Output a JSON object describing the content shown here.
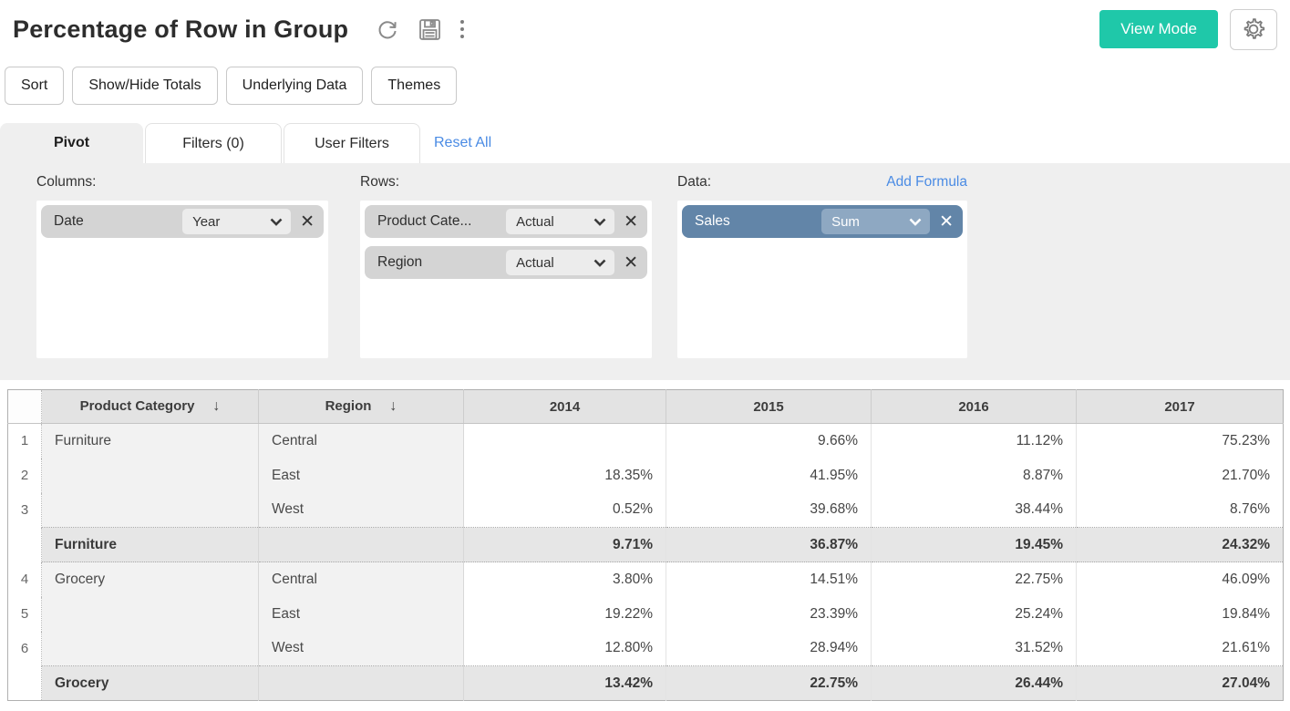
{
  "header": {
    "title": "Percentage of Row in Group",
    "view_mode_label": "View Mode"
  },
  "toolbar": {
    "buttons": [
      "Sort",
      "Show/Hide Totals",
      "Underlying Data",
      "Themes"
    ]
  },
  "tabs": {
    "pivot": "Pivot",
    "filters": "Filters  (0)",
    "user_filters": "User Filters",
    "reset_all": "Reset All"
  },
  "builder": {
    "columns": {
      "label": "Columns:",
      "fields": [
        {
          "name": "Date",
          "agg": "Year"
        }
      ]
    },
    "rows": {
      "label": "Rows:",
      "fields": [
        {
          "name": "Product Cate...",
          "agg": "Actual"
        },
        {
          "name": "Region",
          "agg": "Actual"
        }
      ]
    },
    "data": {
      "label": "Data:",
      "add_formula": "Add Formula",
      "fields": [
        {
          "name": "Sales",
          "agg": "Sum"
        }
      ]
    }
  },
  "pivot_table": {
    "sort_arrow": "↓",
    "headers": [
      {
        "label": "Product Category",
        "sortable": true
      },
      {
        "label": "Region",
        "sortable": true
      },
      {
        "label": "2014"
      },
      {
        "label": "2015"
      },
      {
        "label": "2016"
      },
      {
        "label": "2017"
      }
    ],
    "rows": [
      {
        "num": "1",
        "category": "Furniture",
        "region": "Central",
        "values": [
          "",
          "9.66%",
          "11.12%",
          "75.23%"
        ],
        "total": false
      },
      {
        "num": "2",
        "category": "",
        "region": "East",
        "values": [
          "18.35%",
          "41.95%",
          "8.87%",
          "21.70%"
        ],
        "total": false
      },
      {
        "num": "3",
        "category": "",
        "region": "West",
        "values": [
          "0.52%",
          "39.68%",
          "38.44%",
          "8.76%"
        ],
        "total": false
      },
      {
        "num": "",
        "category": "Furniture",
        "region": "",
        "values": [
          "9.71%",
          "36.87%",
          "19.45%",
          "24.32%"
        ],
        "total": true
      },
      {
        "num": "4",
        "category": "Grocery",
        "region": "Central",
        "values": [
          "3.80%",
          "14.51%",
          "22.75%",
          "46.09%"
        ],
        "total": false
      },
      {
        "num": "5",
        "category": "",
        "region": "East",
        "values": [
          "19.22%",
          "23.39%",
          "25.24%",
          "19.84%"
        ],
        "total": false
      },
      {
        "num": "6",
        "category": "",
        "region": "West",
        "values": [
          "12.80%",
          "28.94%",
          "31.52%",
          "21.61%"
        ],
        "total": false
      },
      {
        "num": "",
        "category": "Grocery",
        "region": "",
        "values": [
          "13.42%",
          "22.75%",
          "26.44%",
          "27.04%"
        ],
        "total": true
      }
    ]
  },
  "colors": {
    "accent_teal": "#1fc8a9",
    "link_blue": "#4a8be4",
    "data_pill_blue": "#6285a8",
    "panel_gray": "#efefef"
  }
}
